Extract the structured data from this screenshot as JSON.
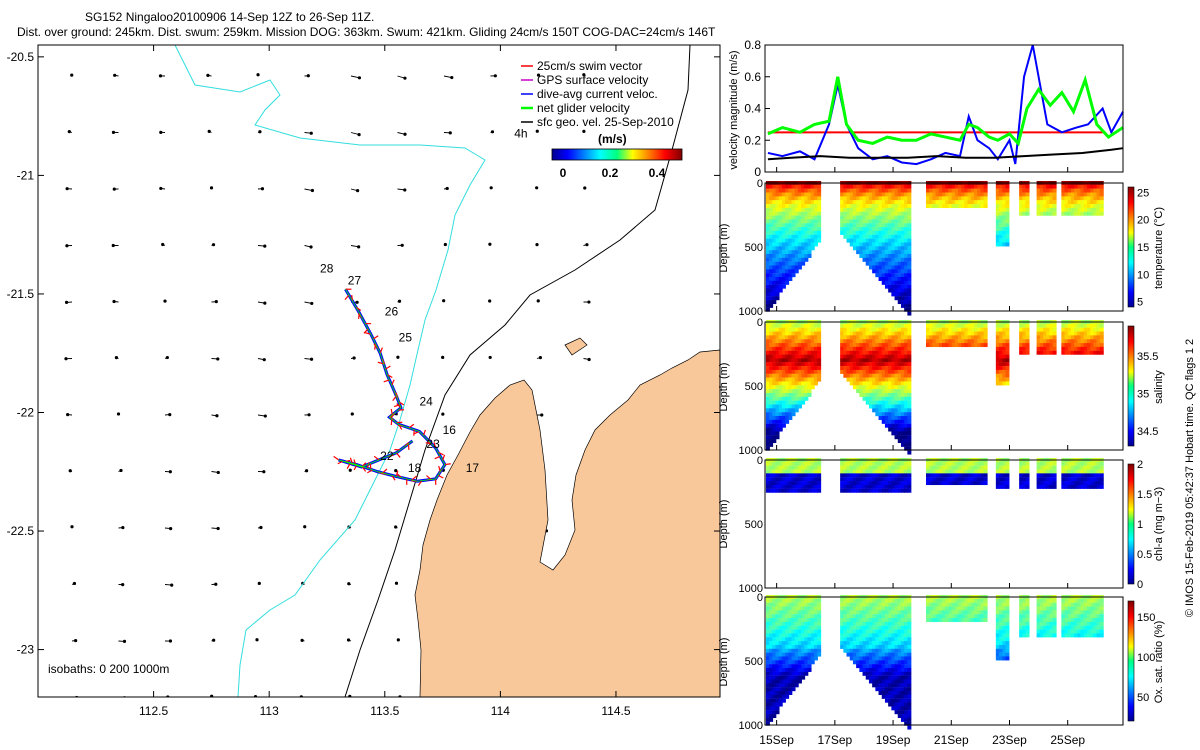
{
  "title": {
    "line1": "SG152 Ningaloo20100906 14-Sep 12Z to 26-Sep 11Z.",
    "line2": "Dist. over ground: 245km. Dist. swum: 259km. Mission DOG: 363km. Swum: 421km. Gliding 24cm/s 150T COG-DAC=24cm/s 146T"
  },
  "colors": {
    "land": "#f9c89a",
    "coast_outline": "#000000",
    "isobath_200": "#000000",
    "isobath_1000": "#33dddd",
    "swim": "#ff0000",
    "gps": "#cc00cc",
    "dive_avg": "#0000ff",
    "net_glider": "#00ff00",
    "geostrophic": "#000000"
  },
  "map": {
    "xlim": [
      112.0,
      114.95
    ],
    "ylim": [
      -23.2,
      -20.45
    ],
    "x_ticks": [
      "112.5",
      "113",
      "113.5",
      "114",
      "114.5"
    ],
    "y_ticks": [
      "-20.5",
      "-21",
      "-21.5",
      "-22",
      "-22.5",
      "-23"
    ],
    "isobaths_label": "isobaths: 0   200  1000m",
    "track": [
      [
        113.33,
        -21.48
      ],
      [
        113.39,
        -21.58
      ],
      [
        113.44,
        -21.67
      ],
      [
        113.48,
        -21.75
      ],
      [
        113.51,
        -21.84
      ],
      [
        113.55,
        -21.93
      ],
      [
        113.57,
        -21.98
      ],
      [
        113.52,
        -22.02
      ],
      [
        113.56,
        -22.05
      ],
      [
        113.65,
        -22.08
      ],
      [
        113.72,
        -22.15
      ],
      [
        113.76,
        -22.22
      ],
      [
        113.72,
        -22.28
      ],
      [
        113.64,
        -22.29
      ],
      [
        113.55,
        -22.27
      ],
      [
        113.47,
        -22.25
      ],
      [
        113.38,
        -22.22
      ],
      [
        113.3,
        -22.2
      ],
      [
        113.4,
        -22.23
      ],
      [
        113.55,
        -22.17
      ],
      [
        113.62,
        -22.12
      ]
    ],
    "day_labels": [
      {
        "label": "28",
        "x": 113.22,
        "y": -21.41
      },
      {
        "label": "27",
        "x": 113.34,
        "y": -21.46
      },
      {
        "label": "26",
        "x": 113.5,
        "y": -21.59
      },
      {
        "label": "25",
        "x": 113.56,
        "y": -21.7
      },
      {
        "label": "24",
        "x": 113.65,
        "y": -21.97
      },
      {
        "label": "16",
        "x": 113.75,
        "y": -22.09
      },
      {
        "label": "23",
        "x": 113.68,
        "y": -22.15
      },
      {
        "label": "22",
        "x": 113.48,
        "y": -22.2
      },
      {
        "label": "18",
        "x": 113.6,
        "y": -22.25
      },
      {
        "label": "17",
        "x": 113.85,
        "y": -22.25
      }
    ],
    "time_label": {
      "label": "4h",
      "x": 114.06,
      "y": -20.84
    },
    "legend": [
      "25cm/s swim vector",
      "GPS surface velocity",
      "dive-avg current veloc.",
      "net glider velocity",
      "sfc geo. vel. 25-Sep-2010"
    ],
    "colorbar": {
      "unit": "(m/s)",
      "ticks": [
        "0",
        "0.2",
        "0.4"
      ],
      "range": [
        0,
        0.5
      ]
    }
  },
  "chart_data": [
    {
      "type": "line",
      "title": "",
      "ylabel": "velocity magnitude (m/s)",
      "ylim": [
        0,
        0.8
      ],
      "y_ticks": [
        "0",
        "0.2",
        "0.4",
        "0.6",
        "0.8"
      ],
      "xlim": [
        14.6,
        26.9
      ],
      "series": [
        {
          "name": "swim",
          "x": [
            14.7,
            15.8,
            16.8,
            18.0,
            19.5,
            21.0,
            22.5,
            23.5,
            24.5,
            25.5,
            26.2
          ],
          "values": [
            0.25,
            0.25,
            0.25,
            0.25,
            0.25,
            0.25,
            0.25,
            0.25,
            0.25,
            0.25,
            0.25
          ]
        },
        {
          "name": "dive-avg current veloc.",
          "x": [
            14.7,
            15.2,
            15.8,
            16.3,
            16.8,
            17.1,
            17.4,
            17.8,
            18.3,
            18.8,
            19.3,
            19.8,
            20.3,
            20.8,
            21.3,
            21.6,
            21.9,
            22.3,
            22.6,
            23.0,
            23.2,
            23.5,
            23.8,
            24.3,
            24.8,
            25.3,
            25.7,
            26.2,
            26.5,
            26.9
          ],
          "values": [
            0.12,
            0.1,
            0.13,
            0.08,
            0.3,
            0.55,
            0.3,
            0.15,
            0.08,
            0.1,
            0.06,
            0.05,
            0.08,
            0.12,
            0.1,
            0.35,
            0.2,
            0.15,
            0.08,
            0.2,
            0.05,
            0.6,
            0.8,
            0.3,
            0.25,
            0.28,
            0.3,
            0.4,
            0.25,
            0.38
          ]
        },
        {
          "name": "net glider velocity",
          "x": [
            14.7,
            15.2,
            15.8,
            16.3,
            16.8,
            17.1,
            17.4,
            17.8,
            18.3,
            18.8,
            19.3,
            19.8,
            20.3,
            20.8,
            21.3,
            21.6,
            21.9,
            22.3,
            22.6,
            23.0,
            23.3,
            23.6,
            24.0,
            24.4,
            24.8,
            25.2,
            25.6,
            26.0,
            26.4,
            26.9
          ],
          "values": [
            0.24,
            0.28,
            0.25,
            0.3,
            0.32,
            0.6,
            0.3,
            0.2,
            0.18,
            0.22,
            0.2,
            0.2,
            0.24,
            0.22,
            0.2,
            0.3,
            0.28,
            0.22,
            0.2,
            0.24,
            0.18,
            0.4,
            0.52,
            0.42,
            0.5,
            0.38,
            0.58,
            0.3,
            0.22,
            0.28
          ]
        },
        {
          "name": "sfc geo. vel.",
          "x": [
            14.7,
            15.5,
            16.5,
            17.5,
            18.5,
            19.5,
            20.5,
            21.5,
            22.5,
            23.5,
            24.5,
            25.5,
            26.5,
            26.9
          ],
          "values": [
            0.08,
            0.09,
            0.1,
            0.09,
            0.09,
            0.09,
            0.1,
            0.09,
            0.09,
            0.1,
            0.11,
            0.12,
            0.14,
            0.15
          ]
        }
      ]
    },
    {
      "type": "heatmap",
      "ylabel": "Depth (m)",
      "depth_range": [
        0,
        1000
      ],
      "depth_ticks": [
        "0",
        "500",
        "1000"
      ],
      "colorbar_label": "temperature (°C)",
      "colorbar_ticks": [
        "5",
        "10",
        "15",
        "20",
        "25"
      ],
      "crange": [
        4,
        26
      ]
    },
    {
      "type": "heatmap",
      "ylabel": "Depth (m)",
      "depth_range": [
        0,
        1000
      ],
      "depth_ticks": [
        "0",
        "500",
        "1000"
      ],
      "colorbar_label": "salinity",
      "colorbar_ticks": [
        "34.5",
        "35",
        "35.5"
      ],
      "crange": [
        34.3,
        35.9
      ]
    },
    {
      "type": "heatmap",
      "ylabel": "Depth (m)",
      "depth_range": [
        0,
        1000
      ],
      "depth_ticks": [
        "0",
        "500",
        "1000"
      ],
      "colorbar_label": "chl-a (mg m−3)",
      "colorbar_ticks": [
        "0",
        "0.5",
        "1",
        "1.5",
        "2"
      ],
      "crange": [
        0,
        2
      ]
    },
    {
      "type": "heatmap",
      "ylabel": "Depth (m)",
      "depth_range": [
        0,
        1000
      ],
      "depth_ticks": [
        "0",
        "500",
        "1000"
      ],
      "colorbar_label": "Ox. sat. ratio (%)",
      "colorbar_ticks": [
        "50",
        "100",
        "150"
      ],
      "crange": [
        20,
        170
      ]
    }
  ],
  "time_axis": {
    "ticks": [
      "15Sep",
      "17Sep",
      "19Sep",
      "21Sep",
      "23Sep",
      "25Sep"
    ],
    "days": [
      15,
      17,
      19,
      21,
      23,
      25
    ]
  },
  "credit": "© IMOS 15-Feb-2019 05:42:37 Hobart time. QC flags 1  2"
}
